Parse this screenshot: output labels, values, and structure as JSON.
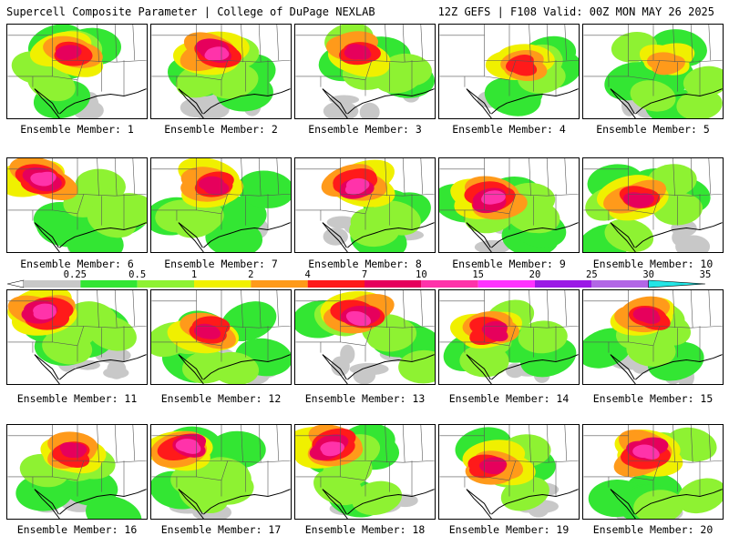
{
  "header": {
    "left_title": "Supercell Composite Parameter | College of DuPage NEXLAB",
    "right_title": "12Z GEFS | F108 Valid: 00Z MON MAY 26 2025"
  },
  "members": [
    {
      "label": "Ensemble Member: 1",
      "max_category": 6,
      "hotspot": "north-central"
    },
    {
      "label": "Ensemble Member: 2",
      "max_category": 7,
      "hotspot": "north-central"
    },
    {
      "label": "Ensemble Member: 3",
      "max_category": 6,
      "hotspot": "north-central"
    },
    {
      "label": "Ensemble Member: 4",
      "max_category": 5,
      "hotspot": "north-east"
    },
    {
      "label": "Ensemble Member: 5",
      "max_category": 4,
      "hotspot": "north-east"
    },
    {
      "label": "Ensemble Member: 6",
      "max_category": 7,
      "hotspot": "north-west"
    },
    {
      "label": "Ensemble Member: 7",
      "max_category": 6,
      "hotspot": "north-central"
    },
    {
      "label": "Ensemble Member: 8",
      "max_category": 7,
      "hotspot": "north-central"
    },
    {
      "label": "Ensemble Member: 9",
      "max_category": 7,
      "hotspot": "central"
    },
    {
      "label": "Ensemble Member: 10",
      "max_category": 6,
      "hotspot": "central"
    },
    {
      "label": "Ensemble Member: 11",
      "max_category": 7,
      "hotspot": "north-west"
    },
    {
      "label": "Ensemble Member: 12",
      "max_category": 6,
      "hotspot": "central"
    },
    {
      "label": "Ensemble Member: 13",
      "max_category": 7,
      "hotspot": "north-central"
    },
    {
      "label": "Ensemble Member: 14",
      "max_category": 6,
      "hotspot": "central"
    },
    {
      "label": "Ensemble Member: 15",
      "max_category": 6,
      "hotspot": "north-central"
    },
    {
      "label": "Ensemble Member: 16",
      "max_category": 6,
      "hotspot": "north-central"
    },
    {
      "label": "Ensemble Member: 17",
      "max_category": 7,
      "hotspot": "north-west"
    },
    {
      "label": "Ensemble Member: 18",
      "max_category": 7,
      "hotspot": "north-west"
    },
    {
      "label": "Ensemble Member: 19",
      "max_category": 6,
      "hotspot": "central"
    },
    {
      "label": "Ensemble Member: 20",
      "max_category": 7,
      "hotspot": "north-central"
    }
  ],
  "colorbar": {
    "labels": [
      "0.25",
      "0.5",
      "1",
      "2",
      "4",
      "7",
      "10",
      "15",
      "20",
      "25",
      "30",
      "35"
    ],
    "colors": [
      "#c8c8c8",
      "#33e633",
      "#8ef232",
      "#f0f000",
      "#ff9a1a",
      "#ff1a1a",
      "#e6005c",
      "#ff33aa",
      "#ff33ff",
      "#9b1ae6",
      "#b266e6",
      "#22e6e6"
    ]
  }
}
